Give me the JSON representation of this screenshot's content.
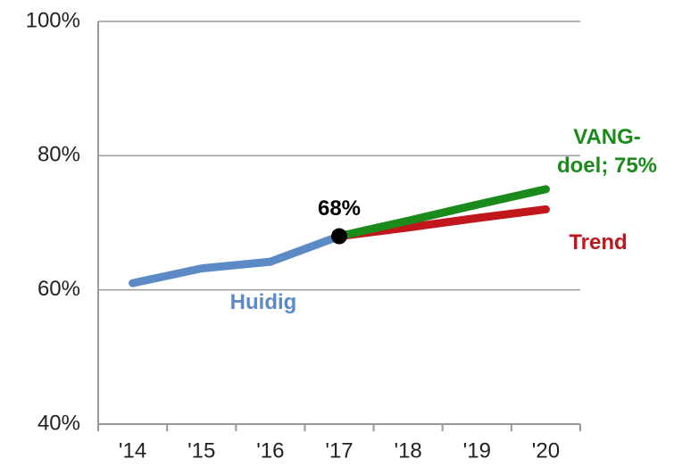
{
  "chart_data": {
    "type": "line",
    "categories": [
      "'14",
      "'15",
      "'16",
      "'17",
      "'18",
      "'19",
      "'20"
    ],
    "series": [
      {
        "name": "Huidig",
        "color": "#5b8ac6",
        "values": [
          61,
          63.2,
          64.2,
          68,
          null,
          null,
          null
        ],
        "value_labels": [
          null,
          null,
          null,
          "68%",
          null,
          null,
          null
        ]
      },
      {
        "name": "Trend",
        "color": "#c0161c",
        "values": [
          null,
          null,
          null,
          68,
          69.3,
          70.7,
          72
        ]
      },
      {
        "name": "VANG-doel; 75%",
        "color": "#1a8a1a",
        "values": [
          null,
          null,
          null,
          68,
          70.3,
          72.7,
          75
        ]
      }
    ],
    "ylim": [
      40,
      100
    ],
    "yticks": [
      {
        "value": 40,
        "label": "40%"
      },
      {
        "value": 60,
        "label": "60%"
      },
      {
        "value": 80,
        "label": "80%"
      },
      {
        "value": 100,
        "label": "100%"
      }
    ],
    "grid": true
  }
}
